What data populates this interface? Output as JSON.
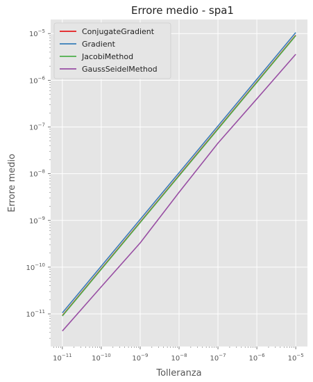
{
  "chart_data": {
    "type": "line",
    "title": "Errore medio - spa1",
    "xlabel": "Tolleranza",
    "ylabel": "Errore medio",
    "xscale": "log",
    "yscale": "log",
    "xlim": [
      5e-12,
      2e-05
    ],
    "ylim": [
      2e-12,
      2e-05
    ],
    "grid": true,
    "legend_position": "top-left",
    "x": [
      1e-11,
      1e-10,
      1e-09,
      1e-08,
      1e-07,
      1e-06,
      1e-05
    ],
    "series": [
      {
        "name": "ConjugateGradient",
        "color": "#e41a1c",
        "values": [
          9.2e-12,
          9.2e-11,
          9.2e-10,
          9.2e-09,
          9.2e-08,
          9.2e-07,
          9.2e-06
        ]
      },
      {
        "name": "Gradient",
        "color": "#377eb8",
        "values": [
          1.05e-11,
          1.05e-10,
          1.05e-09,
          1.05e-08,
          1.05e-07,
          1.05e-06,
          1.05e-05
        ]
      },
      {
        "name": "JacobiMethod",
        "color": "#4daf4a",
        "values": [
          9e-12,
          9e-11,
          9e-10,
          9e-09,
          9e-08,
          9e-07,
          9e-06
        ]
      },
      {
        "name": "GaussSeidelMethod",
        "color": "#984ea3",
        "values": [
          4.3e-12,
          3.8e-11,
          3.3e-10,
          4e-09,
          4.5e-08,
          4e-07,
          3.6e-06
        ]
      }
    ],
    "x_ticks": [
      {
        "value": 1e-11,
        "base": "10",
        "exp": "−11"
      },
      {
        "value": 1e-10,
        "base": "10",
        "exp": "−10"
      },
      {
        "value": 1e-09,
        "base": "10",
        "exp": "−9"
      },
      {
        "value": 1e-08,
        "base": "10",
        "exp": "−8"
      },
      {
        "value": 1e-07,
        "base": "10",
        "exp": "−7"
      },
      {
        "value": 1e-06,
        "base": "10",
        "exp": "−6"
      },
      {
        "value": 1e-05,
        "base": "10",
        "exp": "−5"
      }
    ],
    "y_ticks": [
      {
        "value": 1e-11,
        "base": "10",
        "exp": "−11"
      },
      {
        "value": 1e-10,
        "base": "10",
        "exp": "−10"
      },
      {
        "value": 1e-09,
        "base": "10",
        "exp": "−9"
      },
      {
        "value": 1e-08,
        "base": "10",
        "exp": "−8"
      },
      {
        "value": 1e-07,
        "base": "10",
        "exp": "−7"
      },
      {
        "value": 1e-06,
        "base": "10",
        "exp": "−6"
      },
      {
        "value": 1e-05,
        "base": "10",
        "exp": "−5"
      }
    ]
  }
}
